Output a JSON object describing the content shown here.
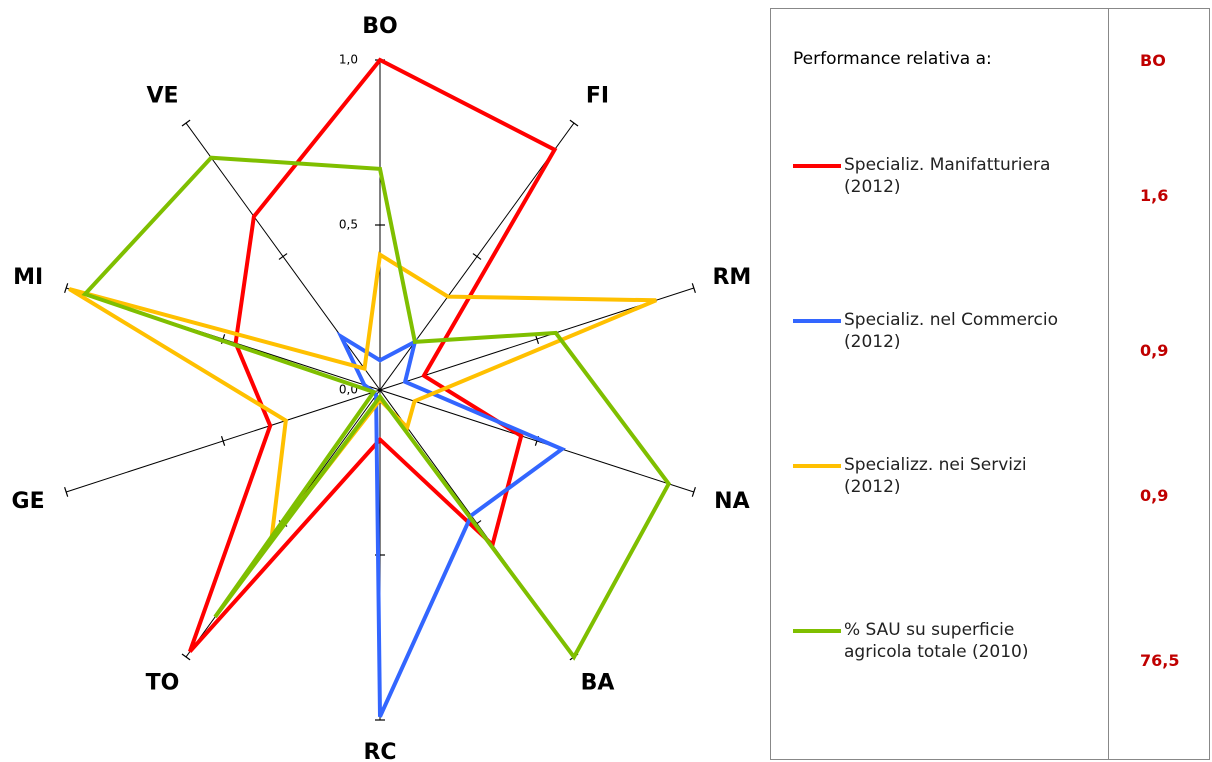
{
  "chart_data": {
    "type": "radar",
    "categories": [
      "BO",
      "FI",
      "RM",
      "NA",
      "BA",
      "RC",
      "TO",
      "GE",
      "MI",
      "VE"
    ],
    "rlim": [
      0,
      1
    ],
    "rticks": [
      {
        "value": 0,
        "label": "0,0"
      },
      {
        "value": 0.5,
        "label": "0,5"
      },
      {
        "value": 1,
        "label": "1,0"
      }
    ],
    "legend_title": "Performance relativa a:",
    "legend_column": "BO",
    "series": [
      {
        "name": "Specializ. Manifatturiera (2012)",
        "color": "#ff0000",
        "table_value": "1,6",
        "values": [
          1.0,
          0.9,
          0.14,
          0.45,
          0.58,
          0.15,
          0.98,
          0.35,
          0.46,
          0.65
        ]
      },
      {
        "name": "Specializ. nel Commercio (2012)",
        "color": "#3366ff",
        "table_value": "0,9",
        "values": [
          0.09,
          0.18,
          0.08,
          0.58,
          0.47,
          0.99,
          0.02,
          0.02,
          0.05,
          0.2
        ]
      },
      {
        "name": "Specializz. nei Servizi (2012)",
        "color": "#ffc000",
        "table_value": "0,9",
        "values": [
          0.41,
          0.35,
          0.88,
          0.11,
          0.14,
          0.03,
          0.56,
          0.3,
          0.99,
          0.08
        ]
      },
      {
        "name": "% SAU su superficie agricola totale (2010)",
        "color": "#7fbf00",
        "table_value": "76,5",
        "values": [
          0.67,
          0.18,
          0.56,
          0.92,
          1.0,
          0.02,
          0.85,
          0.02,
          0.94,
          0.87
        ]
      }
    ]
  }
}
